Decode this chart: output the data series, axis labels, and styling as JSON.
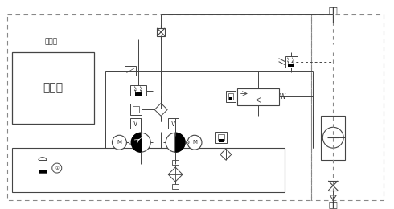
{
  "bg_color": "#ffffff",
  "lc": "#444444",
  "dc": "#888888",
  "tc": "#333333",
  "label_ouqi": "出气",
  "label_jinqi": "进气",
  "label_youqizhan": "油气站",
  "label_diankongxiang": "电控箱",
  "figsize": [
    4.9,
    2.6
  ],
  "dpi": 100,
  "W": "W"
}
